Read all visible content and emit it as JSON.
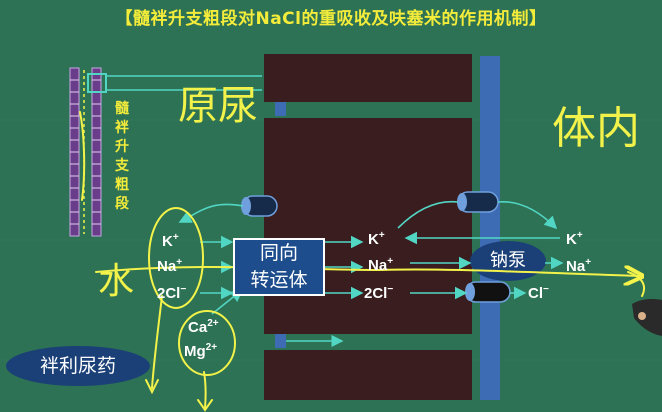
{
  "title": "【髓袢升支粗段对NaCl的重吸收及呋塞米的作用机制】",
  "segment_label": "髓袢升支粗段",
  "handwriting": {
    "urine": "原尿",
    "body": "体内",
    "water": "水"
  },
  "lumen_ions": {
    "k": "K",
    "na": "Na",
    "cl": "2Cl",
    "plus": "+",
    "minus": "−"
  },
  "divalent_ions": {
    "ca": "Ca",
    "mg": "Mg",
    "charge": "2+"
  },
  "cotransporter": {
    "line1": "同向",
    "line2": "转运体"
  },
  "cell_ions": {
    "k": "K",
    "na": "Na",
    "cl": "2Cl",
    "plus": "+",
    "minus": "−"
  },
  "sodium_pump": "钠泵",
  "blood_ions": {
    "k": "K",
    "na": "Na",
    "cl": "Cl",
    "plus": "+",
    "minus": "−"
  },
  "drug_class": "袢利尿药",
  "colors": {
    "background": "#2d7254",
    "cell": "#3a1d1f",
    "membrane": "#3d6cb5",
    "arrow": "#52d6c4",
    "title": "#f4ec3a",
    "handwriting": "#f2f24a",
    "oval": "#1b3f77"
  }
}
